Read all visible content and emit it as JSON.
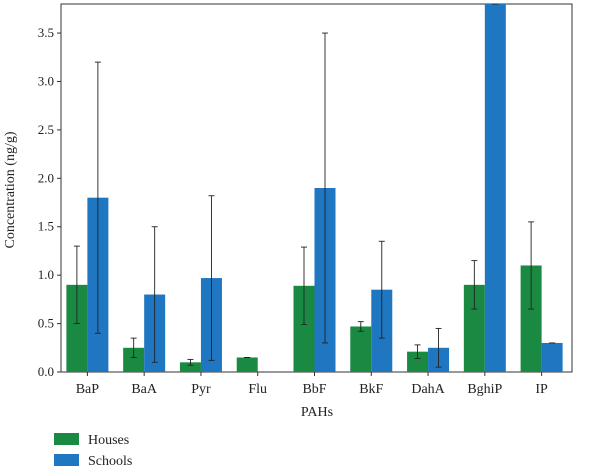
{
  "chart_data": {
    "type": "bar",
    "xlabel": "PAHs",
    "ylabel": "Concentration (ng/g)",
    "ylim": [
      0,
      3.8
    ],
    "yticks": [
      0.0,
      0.5,
      1.0,
      1.5,
      2.0,
      2.5,
      3.0,
      3.5
    ],
    "ytick_labels": [
      "0.0",
      "0.5",
      "1.0",
      "1.5",
      "2.0",
      "2.5",
      "3.0",
      "3.5"
    ],
    "grid": false,
    "legend_position": "bottom-left",
    "categories": [
      "BaP",
      "BaA",
      "Pyr",
      "Flu",
      "BbF",
      "BkF",
      "DahA",
      "BghiP",
      "IP"
    ],
    "series": [
      {
        "name": "Houses",
        "color": "#1a8a43",
        "values": [
          0.9,
          0.25,
          0.1,
          0.15,
          0.89,
          0.47,
          0.21,
          0.9,
          1.1
        ],
        "error": [
          0.4,
          0.1,
          0.03,
          0.0,
          0.4,
          0.05,
          0.07,
          0.25,
          0.45
        ]
      },
      {
        "name": "Schools",
        "color": "#1f77c1",
        "values": [
          1.8,
          0.8,
          0.97,
          null,
          1.9,
          0.85,
          0.25,
          3.8,
          0.3
        ],
        "error": [
          1.4,
          0.7,
          0.85,
          null,
          1.6,
          0.5,
          0.2,
          0.0,
          0.0
        ]
      }
    ]
  }
}
